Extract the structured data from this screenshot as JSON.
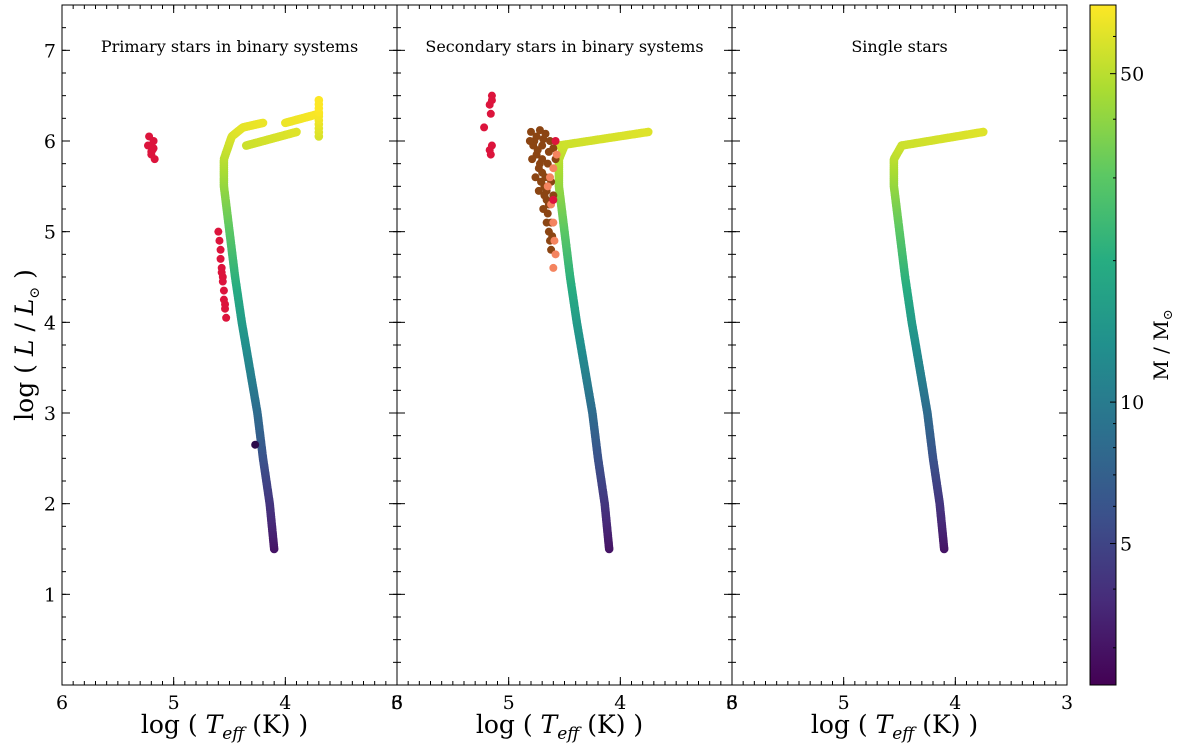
{
  "chart_data": {
    "type": "scatter",
    "grid": false,
    "x_scale": "linear, inverted",
    "xlim": [
      6.0,
      3.0
    ],
    "ylim": [
      0.0,
      7.5
    ],
    "x_ticks": [
      "6",
      "5",
      "4",
      "3"
    ],
    "y_ticks": [
      "1",
      "2",
      "3",
      "4",
      "5",
      "6",
      "7"
    ],
    "xlabel_parts": [
      "log ( ",
      "T",
      "eff",
      " (K) )"
    ],
    "ylabel_parts": [
      "log ( ",
      "L",
      " / ",
      "L",
      "⊙",
      " )"
    ],
    "colorbar": {
      "scale": "log",
      "range": [
        2.5,
        70
      ],
      "ticks": [
        {
          "value": 5,
          "label": "5"
        },
        {
          "value": 10,
          "label": "10"
        },
        {
          "value": 50,
          "label": "50"
        }
      ],
      "label_parts": [
        "M / M",
        "⊙"
      ],
      "colormap": "viridis",
      "stops": [
        "#440154",
        "#472c7a",
        "#3b518b",
        "#2c718e",
        "#21908d",
        "#27ad81",
        "#5cc863",
        "#aadc32",
        "#fde725"
      ]
    },
    "marker_colors": {
      "red": "#dc143c",
      "brown": "#8b4513",
      "salmon": "#f4845f"
    },
    "panels": [
      {
        "title": "Primary stars in binary systems",
        "track": [
          [
            4.1,
            1.5
          ],
          [
            4.14,
            2.0
          ],
          [
            4.2,
            2.5
          ],
          [
            4.25,
            3.0
          ],
          [
            4.32,
            3.5
          ],
          [
            4.39,
            4.0
          ],
          [
            4.45,
            4.5
          ],
          [
            4.5,
            5.0
          ],
          [
            4.55,
            5.5
          ],
          [
            4.55,
            5.8
          ],
          [
            4.48,
            6.05
          ],
          [
            4.38,
            6.15
          ],
          [
            4.2,
            6.2
          ]
        ],
        "extension": [
          [
            4.35,
            5.95
          ],
          [
            3.9,
            6.1
          ]
        ],
        "extension2": [
          [
            4.0,
            6.2
          ],
          [
            3.7,
            6.3
          ]
        ],
        "vertical_extension": [
          [
            3.7,
            6.05
          ],
          [
            3.7,
            6.45
          ]
        ],
        "red_points": [
          [
            5.2,
            5.85
          ],
          [
            5.2,
            5.95
          ],
          [
            5.22,
            6.05
          ],
          [
            5.18,
            6.0
          ],
          [
            5.19,
            5.9
          ],
          [
            5.17,
            5.8
          ],
          [
            5.2,
            5.88
          ],
          [
            5.23,
            5.95
          ],
          [
            5.18,
            5.92
          ],
          [
            4.6,
            5.0
          ],
          [
            4.58,
            4.8
          ],
          [
            4.57,
            4.6
          ],
          [
            4.56,
            4.5
          ],
          [
            4.55,
            4.35
          ],
          [
            4.54,
            4.2
          ],
          [
            4.53,
            4.05
          ],
          [
            4.56,
            4.45
          ],
          [
            4.58,
            4.7
          ],
          [
            4.59,
            4.9
          ],
          [
            4.55,
            4.25
          ],
          [
            4.54,
            4.15
          ],
          [
            4.57,
            4.55
          ]
        ],
        "dark_points": [
          [
            4.27,
            2.65
          ]
        ]
      },
      {
        "title": "Secondary stars in binary systems",
        "track": [
          [
            4.1,
            1.5
          ],
          [
            4.14,
            2.0
          ],
          [
            4.2,
            2.5
          ],
          [
            4.25,
            3.0
          ],
          [
            4.32,
            3.5
          ],
          [
            4.39,
            4.0
          ],
          [
            4.45,
            4.5
          ],
          [
            4.5,
            5.0
          ],
          [
            4.55,
            5.5
          ],
          [
            4.55,
            5.8
          ],
          [
            4.5,
            5.95
          ]
        ],
        "extension": [
          [
            4.55,
            5.95
          ],
          [
            3.75,
            6.1
          ]
        ],
        "brown_points": [
          [
            4.78,
            5.95
          ],
          [
            4.75,
            5.85
          ],
          [
            4.72,
            5.75
          ],
          [
            4.7,
            5.65
          ],
          [
            4.68,
            5.5
          ],
          [
            4.66,
            5.35
          ],
          [
            4.65,
            5.2
          ],
          [
            4.64,
            5.0
          ],
          [
            4.63,
            4.9
          ],
          [
            4.8,
            6.1
          ],
          [
            4.77,
            6.0
          ],
          [
            4.74,
            5.9
          ],
          [
            4.7,
            5.8
          ],
          [
            4.67,
            5.6
          ],
          [
            4.66,
            5.45
          ],
          [
            4.64,
            5.3
          ],
          [
            4.62,
            5.1
          ],
          [
            4.61,
            4.95
          ],
          [
            4.69,
            6.02
          ],
          [
            4.63,
            6.0
          ],
          [
            4.6,
            5.92
          ],
          [
            4.58,
            5.8
          ],
          [
            4.73,
            5.7
          ],
          [
            4.71,
            5.55
          ],
          [
            4.68,
            5.4
          ],
          [
            4.76,
            5.6
          ],
          [
            4.79,
            5.8
          ],
          [
            4.81,
            6.0
          ],
          [
            4.65,
            5.75
          ],
          [
            4.62,
            5.55
          ],
          [
            4.6,
            5.4
          ],
          [
            4.7,
            5.95
          ],
          [
            4.75,
            6.05
          ],
          [
            4.72,
            6.12
          ],
          [
            4.67,
            6.08
          ],
          [
            4.64,
            5.88
          ],
          [
            4.73,
            5.45
          ],
          [
            4.69,
            5.25
          ],
          [
            4.66,
            5.1
          ],
          [
            4.62,
            4.8
          ]
        ],
        "salmon_points": [
          [
            4.65,
            5.5
          ],
          [
            4.62,
            5.3
          ],
          [
            4.6,
            5.1
          ],
          [
            4.59,
            4.9
          ],
          [
            4.58,
            4.75
          ],
          [
            4.6,
            4.6
          ],
          [
            4.63,
            5.6
          ],
          [
            4.6,
            5.7
          ],
          [
            4.57,
            5.85
          ]
        ],
        "red_points": [
          [
            5.15,
            6.5
          ],
          [
            5.17,
            6.4
          ],
          [
            5.16,
            6.3
          ],
          [
            5.15,
            5.95
          ],
          [
            5.17,
            5.9
          ],
          [
            5.16,
            5.85
          ],
          [
            5.22,
            6.15
          ],
          [
            5.15,
            6.45
          ],
          [
            4.58,
            6.0
          ],
          [
            4.6,
            5.35
          ]
        ]
      },
      {
        "title": "Single stars",
        "track": [
          [
            4.1,
            1.5
          ],
          [
            4.14,
            2.0
          ],
          [
            4.2,
            2.5
          ],
          [
            4.25,
            3.0
          ],
          [
            4.32,
            3.5
          ],
          [
            4.39,
            4.0
          ],
          [
            4.45,
            4.5
          ],
          [
            4.5,
            5.0
          ],
          [
            4.55,
            5.5
          ],
          [
            4.55,
            5.8
          ],
          [
            4.48,
            5.95
          ]
        ],
        "extension": [
          [
            4.48,
            5.95
          ],
          [
            3.75,
            6.1
          ]
        ]
      }
    ]
  }
}
